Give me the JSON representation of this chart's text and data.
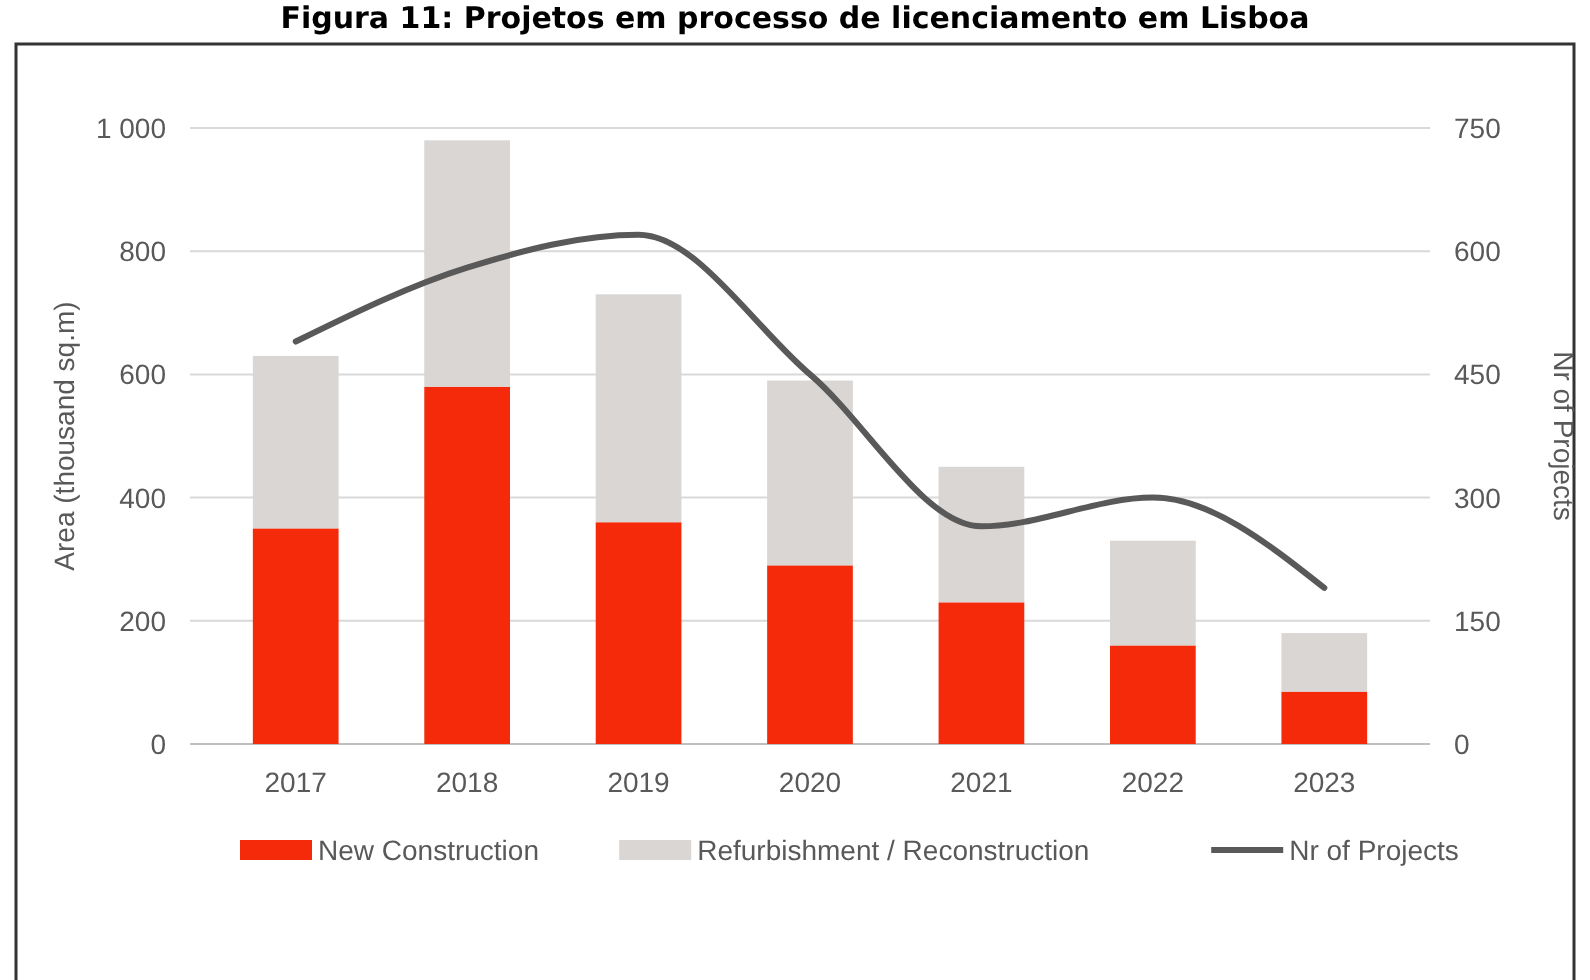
{
  "chart_data": {
    "type": "bar",
    "title": "Figura 11: Projetos em processo de licenciamento em Lisboa",
    "ylabel": "Area (thousand sq.m)",
    "y2label": "Nr of Projects",
    "categories": [
      "2017",
      "2018",
      "2019",
      "2020",
      "2021",
      "2022",
      "2023"
    ],
    "stacked": true,
    "series": [
      {
        "name": "New Construction",
        "color": "#f52a0a",
        "values": [
          350,
          580,
          360,
          290,
          230,
          160,
          85
        ]
      },
      {
        "name": "Refurbishment / Reconstruction",
        "color": "#d9d6d4",
        "values": [
          280,
          400,
          370,
          300,
          220,
          170,
          95
        ]
      },
      {
        "name": "Nr of Projects",
        "type": "line",
        "axis": "y2",
        "color": "#595959",
        "values": [
          490,
          580,
          620,
          450,
          265,
          300,
          190
        ]
      }
    ],
    "ylim": [
      0,
      1000
    ],
    "yticks": [
      0,
      200,
      400,
      600,
      800,
      {
        "value": 1000,
        "label": "1 000"
      }
    ],
    "y2lim": [
      0,
      750
    ],
    "y2ticks": [
      0,
      150,
      300,
      450,
      600,
      750
    ],
    "grid": "y",
    "legend": "bottom",
    "marker": "none",
    "line_style": "solid"
  }
}
